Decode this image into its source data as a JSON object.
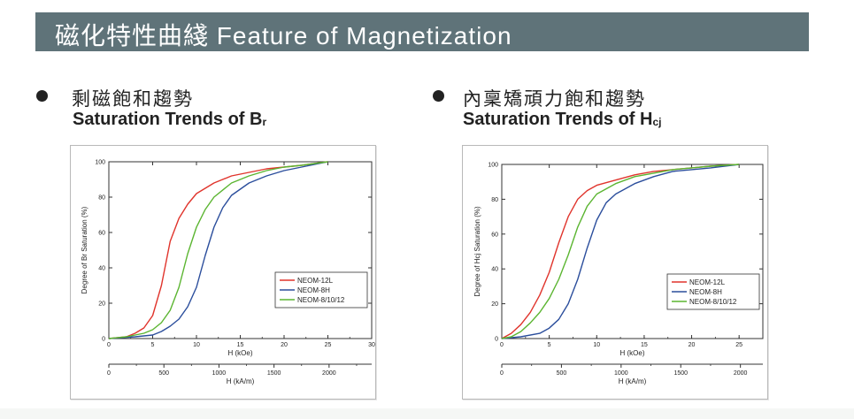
{
  "header": {
    "title": "磁化特性曲綫  Feature of Magnetization"
  },
  "left": {
    "heading_zh": "剩磁飽和趨勢",
    "heading_en": "Saturation Trends of B",
    "heading_en_sub": "r"
  },
  "right": {
    "heading_zh": "內稟矯頑力飽和趨勢",
    "heading_en": "Saturation Trends of H",
    "heading_en_sub": "cj"
  },
  "chart_data": [
    {
      "type": "line",
      "ylabel": "Degree of Br Saturation (%)",
      "xlabel": "H (kOe)",
      "x2label": "H (kA/m)",
      "xlim": [
        0,
        30
      ],
      "ylim": [
        0,
        100
      ],
      "xticks": [
        0,
        5,
        10,
        15,
        20,
        25,
        30
      ],
      "yticks": [
        0,
        20,
        40,
        60,
        80,
        100
      ],
      "x2lim": [
        0,
        2387
      ],
      "x2ticks": [
        0,
        500,
        1000,
        1500,
        2000
      ],
      "legend_position": "lower-right",
      "series": [
        {
          "name": "NEOM-12L",
          "color": "#e0342c",
          "x": [
            0,
            2,
            3,
            4,
            5,
            6,
            7,
            8,
            9,
            10,
            12,
            14,
            16,
            18,
            20,
            22,
            25
          ],
          "y": [
            0,
            1,
            3,
            6,
            13,
            30,
            55,
            68,
            76,
            82,
            88,
            92,
            94,
            96,
            97,
            98,
            100
          ]
        },
        {
          "name": "NEOM-8H",
          "color": "#2b4e9c",
          "x": [
            0,
            3,
            5,
            6,
            7,
            8,
            9,
            10,
            11,
            12,
            13,
            14,
            16,
            18,
            20,
            22,
            25
          ],
          "y": [
            0,
            1,
            2,
            4,
            7,
            11,
            18,
            29,
            47,
            63,
            74,
            81,
            88,
            92,
            95,
            97,
            100
          ]
        },
        {
          "name": "NEOM-8/10/12",
          "color": "#5bb531",
          "x": [
            0,
            2,
            4,
            5,
            6,
            7,
            8,
            9,
            10,
            11,
            12,
            14,
            16,
            18,
            20,
            22,
            25
          ],
          "y": [
            0,
            1,
            3,
            5,
            9,
            16,
            29,
            48,
            63,
            73,
            80,
            88,
            92,
            95,
            97,
            98,
            100
          ]
        }
      ]
    },
    {
      "type": "line",
      "ylabel": "Degree of Hcj Saturation (%)",
      "xlabel": "H (kOe)",
      "x2label": "H (kA/m)",
      "xlim": [
        0,
        27.5
      ],
      "ylim": [
        0,
        100
      ],
      "xticks": [
        0,
        5,
        10,
        15,
        20,
        25
      ],
      "yticks": [
        0,
        20,
        40,
        60,
        80,
        100
      ],
      "x2lim": [
        0,
        2188
      ],
      "x2ticks": [
        0,
        500,
        1000,
        1500,
        2000
      ],
      "legend_position": "lower-right",
      "series": [
        {
          "name": "NEOM-12L",
          "color": "#e0342c",
          "x": [
            0,
            1,
            2,
            3,
            4,
            5,
            6,
            7,
            8,
            9,
            10,
            12,
            14,
            16,
            18,
            20,
            22,
            25
          ],
          "y": [
            0,
            3,
            8,
            15,
            25,
            38,
            55,
            70,
            80,
            85,
            88,
            91,
            94,
            96,
            97,
            98,
            99,
            100
          ]
        },
        {
          "name": "NEOM-8H",
          "color": "#2b4e9c",
          "x": [
            0,
            2,
            4,
            5,
            6,
            7,
            8,
            9,
            10,
            11,
            12,
            14,
            16,
            18,
            20,
            22,
            25
          ],
          "y": [
            0,
            1,
            3,
            6,
            11,
            20,
            34,
            52,
            68,
            78,
            83,
            89,
            93,
            96,
            97,
            98,
            100
          ]
        },
        {
          "name": "NEOM-8/10/12",
          "color": "#5bb531",
          "x": [
            0,
            1,
            2,
            3,
            4,
            5,
            6,
            7,
            8,
            9,
            10,
            12,
            14,
            16,
            18,
            20,
            22,
            25
          ],
          "y": [
            0,
            1,
            4,
            9,
            15,
            23,
            34,
            48,
            64,
            76,
            83,
            89,
            93,
            95,
            97,
            98,
            99,
            100
          ]
        }
      ]
    }
  ]
}
